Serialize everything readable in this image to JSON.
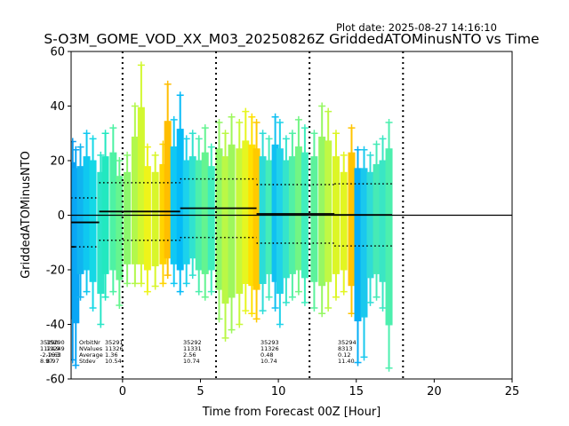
{
  "chart_data": {
    "type": "scatter",
    "title": "S-O3M_GOME_VOD_XX_M03_20250826Z GriddedATOMinusNTO vs Time",
    "subtitle": "Plot date: 2025-08-27 14:16:10",
    "xlabel": "Time from Forecast 00Z [Hour]",
    "ylabel": "GriddedATOMinusNTO",
    "xlim": [
      -3.3,
      25
    ],
    "ylim": [
      -60,
      60
    ],
    "xticks": [
      0,
      5,
      10,
      15,
      20,
      25
    ],
    "yticks": [
      -60,
      -40,
      -20,
      0,
      20,
      40,
      60
    ],
    "grid": false,
    "marker": "plus",
    "vlines": [
      0,
      6,
      12,
      18
    ],
    "zero_line": 0,
    "scan_lines": [
      {
        "x": -3.2,
        "min": -53,
        "max": 27,
        "color": "#0a9cf0"
      },
      {
        "x": -3.0,
        "min": -55,
        "max": 24,
        "color": "#0aa6f5"
      },
      {
        "x": -2.7,
        "min": -30,
        "max": 25,
        "color": "#10b4f0"
      },
      {
        "x": -2.3,
        "min": -28,
        "max": 30,
        "color": "#0fc8f0"
      },
      {
        "x": -1.9,
        "min": -34,
        "max": 28,
        "color": "#14d8e6"
      },
      {
        "x": -1.4,
        "min": -40,
        "max": 22,
        "color": "#2ae6c8"
      },
      {
        "x": -1.1,
        "min": -30,
        "max": 30,
        "color": "#22e8c0"
      },
      {
        "x": -0.6,
        "min": -28,
        "max": 32,
        "color": "#4ef2a4"
      },
      {
        "x": -0.2,
        "min": -33,
        "max": 20,
        "color": "#66f58e"
      },
      {
        "x": 0.3,
        "min": -25,
        "max": 22,
        "color": "#8cf76c"
      },
      {
        "x": 0.8,
        "min": -25,
        "max": 40,
        "color": "#b2f84c"
      },
      {
        "x": 1.2,
        "min": -25,
        "max": 55,
        "color": "#d2f830"
      },
      {
        "x": 1.6,
        "min": -28,
        "max": 25,
        "color": "#eef41a"
      },
      {
        "x": 2.1,
        "min": -26,
        "max": 22,
        "color": "#d8f62a"
      },
      {
        "x": 2.6,
        "min": -25,
        "max": 26,
        "color": "#ffd400"
      },
      {
        "x": 2.9,
        "min": -22,
        "max": 48,
        "color": "#ffbe00"
      },
      {
        "x": 3.3,
        "min": -25,
        "max": 35,
        "color": "#10c8f4"
      },
      {
        "x": 3.7,
        "min": -28,
        "max": 44,
        "color": "#04baf8"
      },
      {
        "x": 4.1,
        "min": -25,
        "max": 28,
        "color": "#1cd2ec"
      },
      {
        "x": 4.5,
        "min": -22,
        "max": 30,
        "color": "#30e2d0"
      },
      {
        "x": 4.9,
        "min": -28,
        "max": 28,
        "color": "#4cefac"
      },
      {
        "x": 5.3,
        "min": -30,
        "max": 32,
        "color": "#64f490"
      },
      {
        "x": 5.7,
        "min": -28,
        "max": 25,
        "color": "#3eeebc"
      },
      {
        "x": 6.2,
        "min": -38,
        "max": 34,
        "color": "#92f766"
      },
      {
        "x": 6.6,
        "min": -45,
        "max": 30,
        "color": "#baf846"
      },
      {
        "x": 7.0,
        "min": -42,
        "max": 36,
        "color": "#9ef75c"
      },
      {
        "x": 7.5,
        "min": -40,
        "max": 34,
        "color": "#c8f83a"
      },
      {
        "x": 7.9,
        "min": -35,
        "max": 38,
        "color": "#e6f620"
      },
      {
        "x": 8.3,
        "min": -36,
        "max": 36,
        "color": "#ffe000"
      },
      {
        "x": 8.6,
        "min": -38,
        "max": 34,
        "color": "#ffca00"
      },
      {
        "x": 9.0,
        "min": -35,
        "max": 30,
        "color": "#2cdcd8"
      },
      {
        "x": 9.4,
        "min": -30,
        "max": 28,
        "color": "#44ecb8"
      },
      {
        "x": 9.8,
        "min": -34,
        "max": 36,
        "color": "#10c0f2"
      },
      {
        "x": 10.1,
        "min": -40,
        "max": 34,
        "color": "#20d2ea"
      },
      {
        "x": 10.5,
        "min": -32,
        "max": 28,
        "color": "#34e4cc"
      },
      {
        "x": 10.9,
        "min": -30,
        "max": 30,
        "color": "#52f0a6"
      },
      {
        "x": 11.3,
        "min": -28,
        "max": 35,
        "color": "#72f584"
      },
      {
        "x": 11.7,
        "min": -32,
        "max": 32,
        "color": "#40eebe"
      },
      {
        "x": 12.3,
        "min": -34,
        "max": 30,
        "color": "#5cf29c"
      },
      {
        "x": 12.8,
        "min": -36,
        "max": 40,
        "color": "#96f764"
      },
      {
        "x": 13.2,
        "min": -34,
        "max": 38,
        "color": "#c0f844"
      },
      {
        "x": 13.7,
        "min": -30,
        "max": 30,
        "color": "#dcf626"
      },
      {
        "x": 14.2,
        "min": -28,
        "max": 22,
        "color": "#e2f622"
      },
      {
        "x": 14.7,
        "min": -36,
        "max": 32,
        "color": "#ffc400"
      },
      {
        "x": 15.1,
        "min": -54,
        "max": 24,
        "color": "#06aef6"
      },
      {
        "x": 15.5,
        "min": -52,
        "max": 24,
        "color": "#1ac8ee"
      },
      {
        "x": 15.9,
        "min": -32,
        "max": 22,
        "color": "#30dcd6"
      },
      {
        "x": 16.3,
        "min": -30,
        "max": 26,
        "color": "#46eab6"
      },
      {
        "x": 16.7,
        "min": -34,
        "max": 28,
        "color": "#3ae6c4"
      },
      {
        "x": 17.1,
        "min": -56,
        "max": 34,
        "color": "#4cefae"
      }
    ],
    "orbit_stats": [
      {
        "orbit": "35290",
        "nvalues": "11249",
        "average": "-2.63",
        "stdev": "8.97",
        "t_start": -3.3,
        "t_end": -1.5,
        "mean": -2.63,
        "sd": 8.97
      },
      {
        "orbit": "35291",
        "nvalues": "11326",
        "average": "1.36",
        "stdev": "10.54",
        "t_start": -1.5,
        "t_end": 3.7,
        "mean": 1.36,
        "sd": 10.54
      },
      {
        "orbit": "35292",
        "nvalues": "11331",
        "average": "2.56",
        "stdev": "10.74",
        "t_start": 3.7,
        "t_end": 8.6,
        "mean": 2.56,
        "sd": 10.74
      },
      {
        "orbit": "35293",
        "nvalues": "11326",
        "average": "0.48",
        "stdev": "10.74",
        "t_start": 8.6,
        "t_end": 13.6,
        "mean": 0.48,
        "sd": 10.74
      },
      {
        "orbit": "35294",
        "nvalues": "8313",
        "average": "0.12",
        "stdev": "11.40",
        "t_start": 13.6,
        "t_end": 17.3,
        "mean": 0.12,
        "sd": 11.4
      }
    ],
    "stat_header": [
      "OrbitNr",
      "NValues",
      "Average",
      "Stdev"
    ],
    "partial_stats": {
      "orbit": "35290",
      "nvalues": "1124",
      "average": "-2.16",
      "stdev": "8.97",
      "tail_values": [
        "9",
        "3"
      ]
    }
  }
}
